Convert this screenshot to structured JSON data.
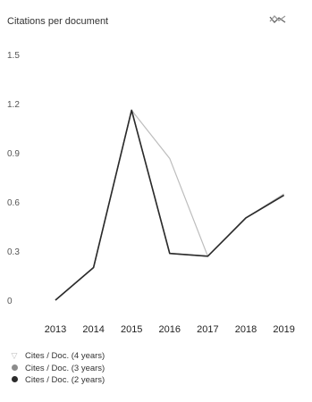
{
  "chart_data": {
    "type": "line",
    "title": "Citations per document",
    "x": [
      "2013",
      "2014",
      "2015",
      "2016",
      "2017",
      "2018",
      "2019"
    ],
    "y_ticks": [
      "1.5",
      "1.2",
      "0.9",
      "0.6",
      "0.3",
      "0"
    ],
    "ylim": [
      0,
      1.5
    ],
    "grid": false,
    "legend_position": "bottom-left",
    "series": [
      {
        "name": "Cites / Doc. (4 years)",
        "color": "#bdbdbd",
        "marker": "funnel",
        "values": [
          0.0,
          0.23,
          1.34,
          1.0,
          0.31,
          0.58,
          0.75
        ]
      },
      {
        "name": "Cites / Doc. (3 years)",
        "color": "#8c8c8c",
        "marker": "dot",
        "values": [
          0.0,
          0.23,
          1.34,
          0.33,
          0.31,
          0.58,
          0.74
        ]
      },
      {
        "name": "Cites / Doc. (2 years)",
        "color": "#2b2b2b",
        "marker": "dot",
        "values": [
          0.0,
          0.23,
          1.34,
          0.33,
          0.31,
          0.58,
          0.74
        ]
      }
    ]
  },
  "ui": {
    "chart_type_icon": "line-chart-icon"
  }
}
